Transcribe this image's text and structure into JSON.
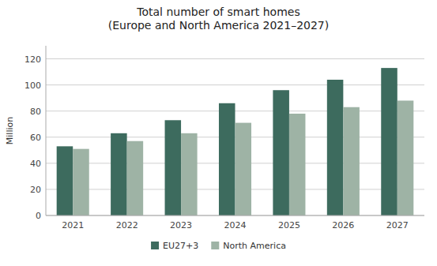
{
  "chart_data": {
    "type": "bar",
    "title": "Total number of smart homes\n(Europe and North America 2021–2027)",
    "y_label": "Million",
    "categories": [
      "2021",
      "2022",
      "2023",
      "2024",
      "2025",
      "2026",
      "2027"
    ],
    "series": [
      {
        "name": "EU27+3",
        "color": "#3d6b5e",
        "values": [
          53,
          63,
          73,
          86,
          96,
          104,
          113
        ]
      },
      {
        "name": "North America",
        "color": "#9eb3a5",
        "values": [
          51,
          57,
          63,
          71,
          78,
          83,
          88
        ]
      }
    ],
    "ylim": [
      0,
      130
    ],
    "yticks": [
      0,
      20,
      40,
      60,
      80,
      100,
      120
    ],
    "grid": true,
    "legend": "bottom"
  }
}
